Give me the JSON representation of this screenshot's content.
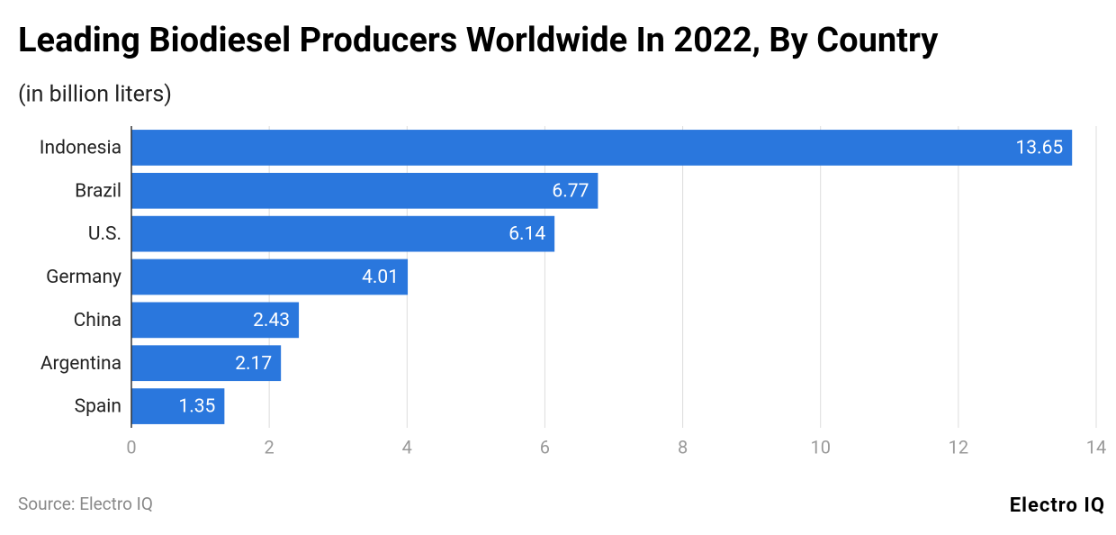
{
  "chart_data": {
    "type": "bar",
    "orientation": "horizontal",
    "title": "Leading Biodiesel Producers Worldwide In 2022, By Country",
    "subtitle": "(in billion liters)",
    "categories": [
      "Indonesia",
      "Brazil",
      "U.S.",
      "Germany",
      "China",
      "Argentina",
      "Spain"
    ],
    "values": [
      13.65,
      6.77,
      6.14,
      4.01,
      2.43,
      2.17,
      1.35
    ],
    "color": "#2a77dd",
    "xlim": [
      0,
      14
    ],
    "xticks": [
      0,
      2,
      4,
      6,
      8,
      10,
      12,
      14
    ],
    "grid": true,
    "source": "Source: Electro IQ",
    "brand": "Electro IQ"
  }
}
